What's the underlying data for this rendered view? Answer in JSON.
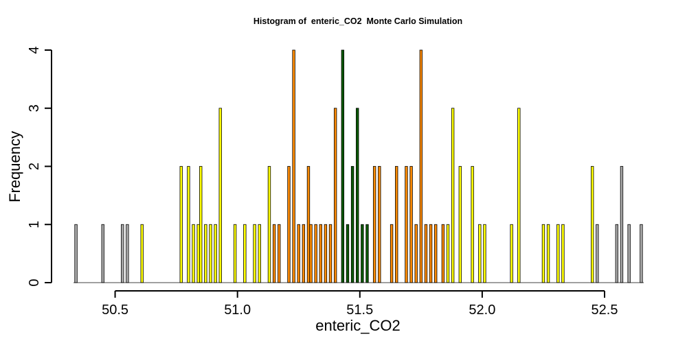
{
  "chart_data": {
    "type": "bar",
    "title": "Histogram of  enteric_CO2  Monte Carlo Simulation",
    "xlabel": "enteric_CO2",
    "ylabel": "Frequency",
    "xlim": [
      50.33,
      52.66
    ],
    "ylim": [
      0,
      4
    ],
    "bin_start": 50.33,
    "bin_width": 0.01,
    "x_ticks": [
      50.5,
      51.0,
      51.5,
      52.0,
      52.5
    ],
    "x_tick_labels": [
      "50.5",
      "51.0",
      "51.5",
      "52.0",
      "52.5"
    ],
    "y_ticks": [
      0,
      1,
      2,
      3,
      4
    ],
    "y_tick_labels": [
      "0",
      "1",
      "2",
      "3",
      "4"
    ],
    "grid": false,
    "colors": {
      "outer": "#aaaaaa",
      "mid": "#ffff00",
      "inner": "#ff8c00",
      "core": "#0b5a00"
    },
    "bins": [
      {
        "x": 50.34,
        "count": 1,
        "group": "outer"
      },
      {
        "x": 50.45,
        "count": 1,
        "group": "outer"
      },
      {
        "x": 50.53,
        "count": 1,
        "group": "outer"
      },
      {
        "x": 50.55,
        "count": 1,
        "group": "outer"
      },
      {
        "x": 50.61,
        "count": 1,
        "group": "mid"
      },
      {
        "x": 50.77,
        "count": 2,
        "group": "mid"
      },
      {
        "x": 50.8,
        "count": 2,
        "group": "mid"
      },
      {
        "x": 50.82,
        "count": 1,
        "group": "mid"
      },
      {
        "x": 50.84,
        "count": 1,
        "group": "mid"
      },
      {
        "x": 50.85,
        "count": 2,
        "group": "mid"
      },
      {
        "x": 50.87,
        "count": 1,
        "group": "mid"
      },
      {
        "x": 50.89,
        "count": 1,
        "group": "mid"
      },
      {
        "x": 50.91,
        "count": 1,
        "group": "mid"
      },
      {
        "x": 50.93,
        "count": 3,
        "group": "mid"
      },
      {
        "x": 50.99,
        "count": 1,
        "group": "mid"
      },
      {
        "x": 51.03,
        "count": 1,
        "group": "mid"
      },
      {
        "x": 51.07,
        "count": 1,
        "group": "mid"
      },
      {
        "x": 51.09,
        "count": 1,
        "group": "mid"
      },
      {
        "x": 51.13,
        "count": 2,
        "group": "mid"
      },
      {
        "x": 51.15,
        "count": 1,
        "group": "inner"
      },
      {
        "x": 51.17,
        "count": 1,
        "group": "inner"
      },
      {
        "x": 51.21,
        "count": 2,
        "group": "inner"
      },
      {
        "x": 51.23,
        "count": 4,
        "group": "inner"
      },
      {
        "x": 51.25,
        "count": 1,
        "group": "inner"
      },
      {
        "x": 51.27,
        "count": 1,
        "group": "inner"
      },
      {
        "x": 51.29,
        "count": 2,
        "group": "inner"
      },
      {
        "x": 51.3,
        "count": 1,
        "group": "inner"
      },
      {
        "x": 51.32,
        "count": 1,
        "group": "inner"
      },
      {
        "x": 51.34,
        "count": 1,
        "group": "inner"
      },
      {
        "x": 51.36,
        "count": 1,
        "group": "inner"
      },
      {
        "x": 51.38,
        "count": 1,
        "group": "inner"
      },
      {
        "x": 51.4,
        "count": 3,
        "group": "inner"
      },
      {
        "x": 51.43,
        "count": 4,
        "group": "core"
      },
      {
        "x": 51.45,
        "count": 1,
        "group": "core"
      },
      {
        "x": 51.47,
        "count": 2,
        "group": "core"
      },
      {
        "x": 51.49,
        "count": 3,
        "group": "core"
      },
      {
        "x": 51.51,
        "count": 1,
        "group": "core"
      },
      {
        "x": 51.53,
        "count": 1,
        "group": "core"
      },
      {
        "x": 51.56,
        "count": 2,
        "group": "inner"
      },
      {
        "x": 51.58,
        "count": 2,
        "group": "inner"
      },
      {
        "x": 51.63,
        "count": 1,
        "group": "inner"
      },
      {
        "x": 51.65,
        "count": 2,
        "group": "inner"
      },
      {
        "x": 51.69,
        "count": 2,
        "group": "inner"
      },
      {
        "x": 51.71,
        "count": 2,
        "group": "inner"
      },
      {
        "x": 51.73,
        "count": 1,
        "group": "inner"
      },
      {
        "x": 51.75,
        "count": 4,
        "group": "inner"
      },
      {
        "x": 51.77,
        "count": 1,
        "group": "inner"
      },
      {
        "x": 51.79,
        "count": 1,
        "group": "inner"
      },
      {
        "x": 51.81,
        "count": 1,
        "group": "inner"
      },
      {
        "x": 51.84,
        "count": 1,
        "group": "inner"
      },
      {
        "x": 51.86,
        "count": 1,
        "group": "mid"
      },
      {
        "x": 51.88,
        "count": 3,
        "group": "mid"
      },
      {
        "x": 51.91,
        "count": 2,
        "group": "mid"
      },
      {
        "x": 51.96,
        "count": 2,
        "group": "mid"
      },
      {
        "x": 51.99,
        "count": 1,
        "group": "mid"
      },
      {
        "x": 52.01,
        "count": 1,
        "group": "mid"
      },
      {
        "x": 52.12,
        "count": 1,
        "group": "mid"
      },
      {
        "x": 52.15,
        "count": 3,
        "group": "mid"
      },
      {
        "x": 52.25,
        "count": 1,
        "group": "mid"
      },
      {
        "x": 52.27,
        "count": 1,
        "group": "mid"
      },
      {
        "x": 52.31,
        "count": 1,
        "group": "mid"
      },
      {
        "x": 52.33,
        "count": 1,
        "group": "mid"
      },
      {
        "x": 52.45,
        "count": 2,
        "group": "mid"
      },
      {
        "x": 52.47,
        "count": 1,
        "group": "outer"
      },
      {
        "x": 52.55,
        "count": 1,
        "group": "outer"
      },
      {
        "x": 52.57,
        "count": 2,
        "group": "outer"
      },
      {
        "x": 52.6,
        "count": 1,
        "group": "outer"
      },
      {
        "x": 52.65,
        "count": 1,
        "group": "outer"
      }
    ]
  }
}
